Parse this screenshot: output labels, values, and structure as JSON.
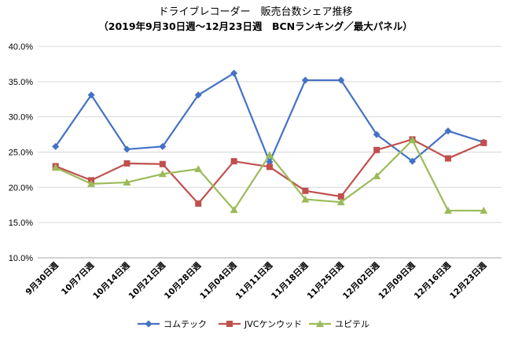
{
  "chart_data": {
    "type": "line",
    "title": "ドライブレコーダー　販売台数シェア推移",
    "subtitle": "（2019年9月30日週〜12月23日週　BCNランキング／最大パネル）",
    "categories": [
      "9月30日週",
      "10月7日週",
      "10月14日週",
      "10月21日週",
      "10月28日週",
      "11月04日週",
      "11月11日週",
      "11月18日週",
      "11月25日週",
      "12月02日週",
      "12月09日週",
      "12月16日週",
      "12月23日週"
    ],
    "ylim": [
      10.0,
      40.0
    ],
    "yticks": [
      10.0,
      15.0,
      20.0,
      25.0,
      30.0,
      35.0,
      40.0
    ],
    "ytick_labels": [
      "10.0%",
      "15.0%",
      "20.0%",
      "25.0%",
      "30.0%",
      "35.0%",
      "40.0%"
    ],
    "grid": true,
    "legend_position": "bottom",
    "series": [
      {
        "name": "コムテック",
        "color": "#4472c4",
        "marker": "diamond",
        "values": [
          25.8,
          33.1,
          25.4,
          25.8,
          33.1,
          36.2,
          23.6,
          35.2,
          35.2,
          27.5,
          23.7,
          28.0,
          26.4
        ]
      },
      {
        "name": "JVCケンウッド",
        "color": "#c0504d",
        "marker": "square",
        "values": [
          23.0,
          21.0,
          23.4,
          23.3,
          17.7,
          23.7,
          22.9,
          19.5,
          18.7,
          25.3,
          26.8,
          24.1,
          26.3
        ]
      },
      {
        "name": "ユピテル",
        "color": "#9bbb59",
        "marker": "triangle",
        "values": [
          22.8,
          20.5,
          20.7,
          21.9,
          22.6,
          16.8,
          24.6,
          18.3,
          17.9,
          21.6,
          26.7,
          16.7,
          16.7
        ]
      }
    ]
  }
}
